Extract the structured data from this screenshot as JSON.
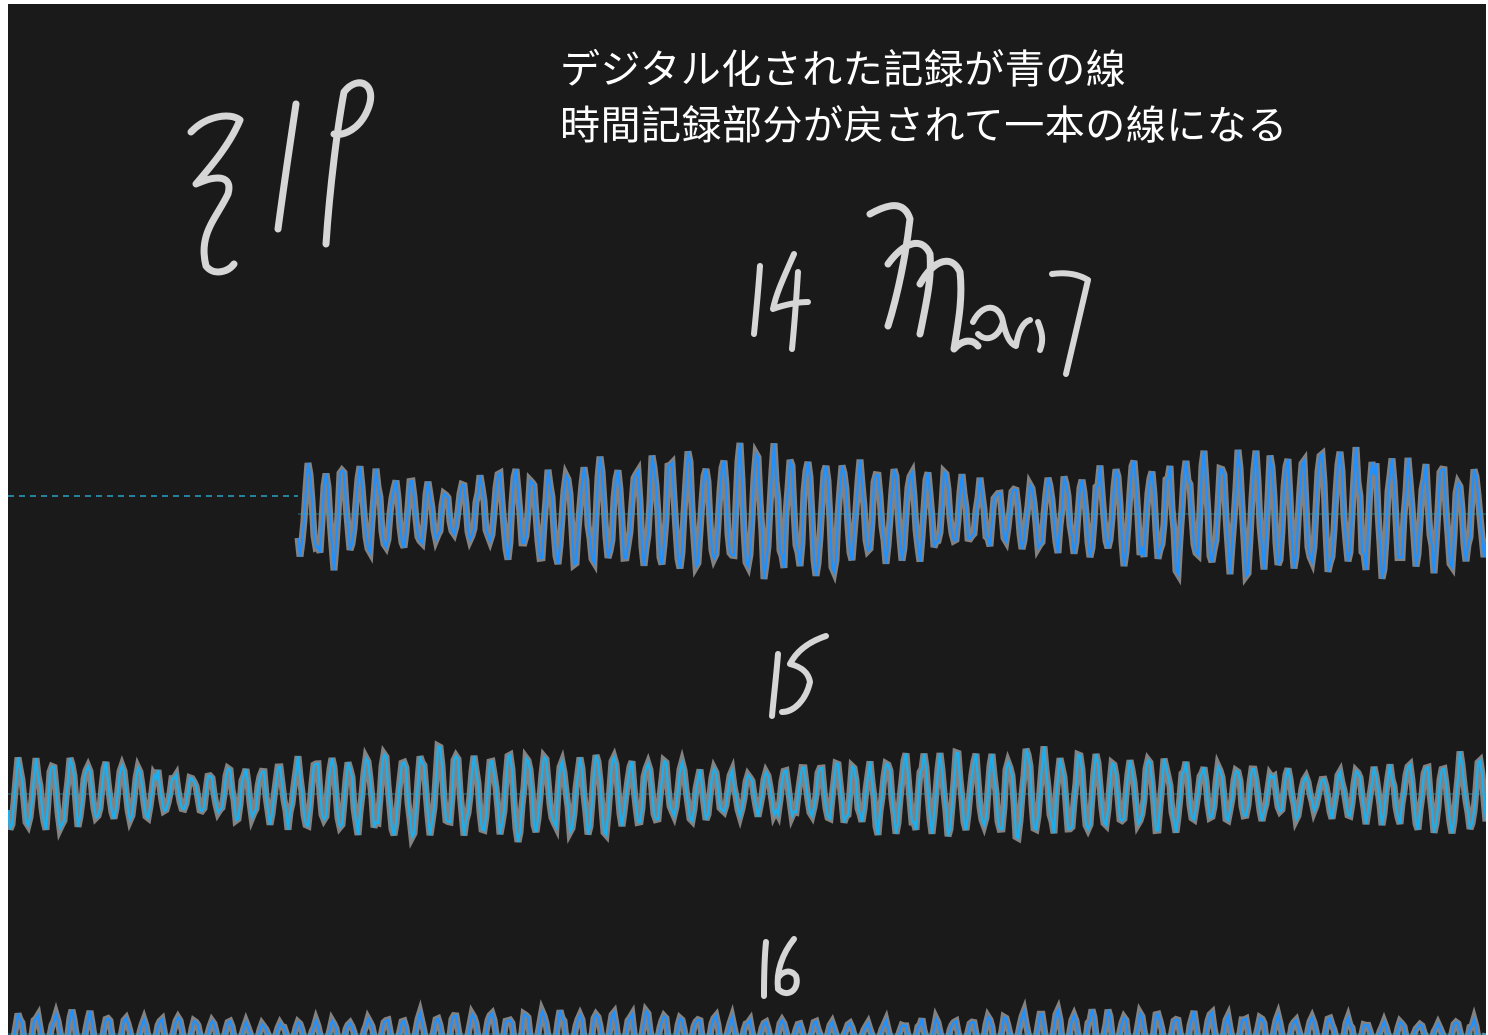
{
  "caption": {
    "line1": "デジタル化された記録が青の線",
    "line2": "時間記録部分が戻されて一本の線になる"
  },
  "handwriting": {
    "station": "ZLP",
    "date": "14 Mar, 7",
    "minute_marks": [
      "15",
      "16"
    ]
  },
  "colors": {
    "background": "#1a1a1a",
    "paper_trace": "#d9d9d9",
    "digitized_trace": "#1e90ff",
    "digitized_trace_light": "#1ab0f0",
    "baseline": "#2aa3c8",
    "caption_text": "#ffffff"
  },
  "traces": [
    {
      "name": "trace-1",
      "seed": 7,
      "amplitude": 0.85,
      "onset_fraction": 0.2
    },
    {
      "name": "trace-2",
      "seed": 21,
      "amplitude": 0.75,
      "onset_fraction": 0
    },
    {
      "name": "trace-3",
      "seed": 33,
      "amplitude": 0.6,
      "onset_fraction": 0
    }
  ]
}
